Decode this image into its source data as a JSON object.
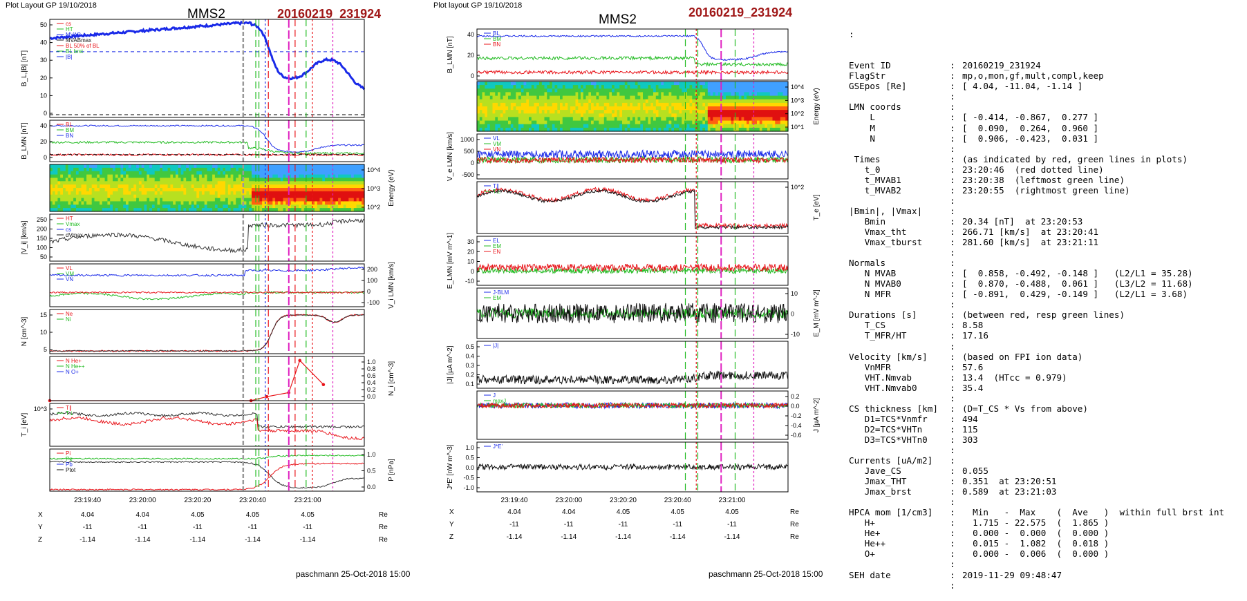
{
  "left_figure": {
    "header": "Plot Layout GP 19/10/2018",
    "spacecraft": "MMS2",
    "event": "20160219_231924",
    "footer": "paschmann 25-Oct-2018 15:00",
    "panels": [
      {
        "ylabel": "B_L,|B| [nT]",
        "legend": [
          "cs",
          "HT",
          "MVAB",
          "MVABmax",
          "BL 50% of BL",
          "BL brst",
          "|B|"
        ],
        "yticks": [
          "50",
          "40",
          "30",
          "20",
          "10",
          "0"
        ],
        "side": "left"
      },
      {
        "ylabel": "B_LMN [nT]",
        "legend": [
          "BL",
          "BM",
          "BN"
        ],
        "yticks": [
          "40",
          "20",
          "0"
        ],
        "side": "left"
      },
      {
        "ylabel": "Energy (eV)",
        "legend": [],
        "yticks": [
          "10^4",
          "10^3",
          "10^2"
        ],
        "side": "right"
      },
      {
        "ylabel": "|V_i| [km/s]",
        "legend": [
          "HT",
          "Vmax",
          "cs",
          "dVmax"
        ],
        "yticks": [
          "250",
          "200",
          "150",
          "100",
          "50"
        ],
        "side": "left"
      },
      {
        "ylabel": "V_i LMN [km/s]",
        "legend": [
          "VL",
          "VM",
          "VN"
        ],
        "yticks": [
          "200",
          "100",
          "0",
          "-100"
        ],
        "side": "right"
      },
      {
        "ylabel": "N [cm^-3]",
        "legend": [
          "Ne",
          "Ni"
        ],
        "yticks": [
          "15",
          "10",
          "5"
        ],
        "side": "left"
      },
      {
        "ylabel": "N_i [cm^-3]",
        "legend": [
          "N He+",
          "N He++",
          "N O+"
        ],
        "yticks": [
          "1.0",
          "0.8",
          "0.6",
          "0.4",
          "0.2",
          "0.0"
        ],
        "side": "right"
      },
      {
        "ylabel": "T_i [eV]",
        "legend": [
          "T∥",
          "T⊥"
        ],
        "yticks": [
          "10^3"
        ],
        "side": "left"
      },
      {
        "ylabel": "P [nPa]",
        "legend": [
          "Pi",
          "Pe",
          "Pb",
          "Ptot"
        ],
        "yticks": [
          "1.0",
          "0.5",
          "0.0"
        ],
        "side": "right"
      }
    ],
    "xticks": [
      "23:19:40",
      "23:20:00",
      "23:20:20",
      "23:20:40",
      "23:21:00"
    ],
    "pos_rows": [
      {
        "label": "X",
        "values": [
          "4.04",
          "4.04",
          "4.05",
          "4.05",
          "4.05"
        ],
        "unit": "Re"
      },
      {
        "label": "Y",
        "values": [
          "-11",
          "-11",
          "-11",
          "-11",
          "-11"
        ],
        "unit": "Re"
      },
      {
        "label": "Z",
        "values": [
          "-1.14",
          "-1.14",
          "-1.14",
          "-1.14",
          "-1.14"
        ],
        "unit": "Re"
      }
    ]
  },
  "right_figure": {
    "header": "Plot layout GP 19/10/2018",
    "spacecraft": "MMS2",
    "event": "20160219_231924",
    "footer": "paschmann 25-Oct-2018 15:00",
    "panels": [
      {
        "ylabel": "B_LMN [nT]",
        "legend": [
          "BL",
          "BM",
          "BN"
        ],
        "yticks": [
          "40",
          "20",
          "0"
        ],
        "side": "left"
      },
      {
        "ylabel": "Energy (eV)",
        "legend": [],
        "yticks": [
          "10^4",
          "10^3",
          "10^2",
          "10^1"
        ],
        "side": "right"
      },
      {
        "ylabel": "V_e LMN [km/s]",
        "legend": [
          "VL",
          "VM",
          "VN"
        ],
        "yticks": [
          "1000",
          "500",
          "0",
          "-500"
        ],
        "side": "left"
      },
      {
        "ylabel": "T_e [eV]",
        "legend": [
          "T∥",
          "T⊥"
        ],
        "yticks": [
          "10^2"
        ],
        "side": "right"
      },
      {
        "ylabel": "E_LMN [mV m^-1]",
        "legend": [
          "EL",
          "EM",
          "EN"
        ],
        "yticks": [
          "30",
          "20",
          "10",
          "0",
          "-10"
        ],
        "side": "left"
      },
      {
        "ylabel": "E_M [mV m^-2]",
        "legend": [
          "J·BLM",
          "EM"
        ],
        "yticks": [
          "10",
          "0",
          "-10"
        ],
        "side": "right"
      },
      {
        "ylabel": "|J| [µA m^-2]",
        "legend": [
          "|J|"
        ],
        "yticks": [
          "0.5",
          "0.4",
          "0.3",
          "0.2",
          "0.1"
        ],
        "side": "left"
      },
      {
        "ylabel": "J [µA m^-2]",
        "legend": [
          "J",
          "maxJ",
          "J"
        ],
        "yticks": [
          "0.2",
          "0.0",
          "-0.2",
          "-0.4",
          "-0.6"
        ],
        "side": "right"
      },
      {
        "ylabel": "J*E' [nW m^-3]",
        "legend": [
          "J*E'"
        ],
        "yticks": [
          "1.0",
          "0.5",
          "0.0",
          "-0.5",
          "-1.0"
        ],
        "side": "left"
      }
    ],
    "xticks": [
      "23:19:40",
      "23:20:00",
      "23:20:20",
      "23:20:40",
      "23:21:00"
    ],
    "pos_rows": [
      {
        "label": "X",
        "values": [
          "4.04",
          "4.04",
          "4.05",
          "4.05",
          "4.05"
        ],
        "unit": "Re"
      },
      {
        "label": "Y",
        "values": [
          "-11",
          "-11",
          "-11",
          "-11",
          "-11"
        ],
        "unit": "Re"
      },
      {
        "label": "Z",
        "values": [
          "-1.14",
          "-1.14",
          "-1.14",
          "-1.14",
          "-1.14"
        ],
        "unit": "Re"
      }
    ]
  },
  "chart_data": [
    {
      "type": "line",
      "title": "MMS2 20160219_231924",
      "xlabel": "time",
      "ylabel": "B_L,|B| [nT]",
      "ylim": [
        0,
        52
      ],
      "x": [
        "23:19:30",
        "23:19:40",
        "23:20:00",
        "23:20:20",
        "23:20:40",
        "23:20:45",
        "23:20:50",
        "23:20:55",
        "23:21:00",
        "23:21:05",
        "23:21:10"
      ],
      "series": [
        {
          "name": "|B|",
          "values": [
            41,
            44,
            47,
            49,
            50,
            42,
            22,
            20,
            27,
            34,
            17
          ]
        }
      ]
    },
    {
      "type": "line",
      "xlabel": "time",
      "ylabel": "N [cm^-3]",
      "ylim": [
        0,
        16
      ],
      "x": [
        "23:19:30",
        "23:19:40",
        "23:20:00",
        "23:20:20",
        "23:20:40",
        "23:20:45",
        "23:20:50",
        "23:20:55",
        "23:21:00",
        "23:21:05",
        "23:21:10"
      ],
      "series": [
        {
          "name": "Ne",
          "values": [
            1.1,
            1.0,
            1.0,
            1.0,
            1.0,
            2.5,
            12,
            14.5,
            14,
            11,
            14
          ]
        },
        {
          "name": "Ni",
          "values": [
            1.1,
            1.0,
            1.0,
            1.0,
            1.0,
            2.5,
            12,
            14.5,
            14,
            11,
            14
          ]
        }
      ]
    },
    {
      "type": "line",
      "xlabel": "time",
      "ylabel": "N_i [cm^-3]",
      "ylim": [
        0,
        1.1
      ],
      "x": [
        "23:19:30",
        "23:20:20",
        "23:20:40",
        "23:20:52",
        "23:21:04"
      ],
      "series": [
        {
          "name": "N He++",
          "values": [
            0,
            0,
            0.1,
            1.0,
            0.4
          ]
        }
      ]
    },
    {
      "type": "line",
      "xlabel": "time",
      "ylabel": "|J| [µA m^-2]",
      "ylim": [
        0,
        0.55
      ],
      "x": [
        "23:19:30",
        "23:20:00",
        "23:20:40",
        "23:20:51",
        "23:21:03"
      ],
      "series": [
        {
          "name": "|J|",
          "values": [
            0.1,
            0.08,
            0.1,
            0.35,
            0.59
          ]
        }
      ]
    }
  ],
  "info": {
    "lead": ":",
    "rows": [
      [
        "Event ID",
        ":",
        "20160219_231924"
      ],
      [
        "FlagStr",
        ":",
        "mp,o,mon,gf,mult,compl,keep"
      ],
      [
        "GSEpos [Re]",
        ":",
        "[ 4.04, -11.04, -1.14 ]"
      ],
      [
        "",
        ":",
        ""
      ],
      [
        "LMN coords",
        ":",
        ""
      ],
      [
        "    L",
        ":",
        "[ -0.414, -0.867,  0.277 ]"
      ],
      [
        "    M",
        ":",
        "[  0.090,  0.264,  0.960 ]"
      ],
      [
        "    N",
        ":",
        "[  0.906, -0.423,  0.031 ]"
      ],
      [
        "",
        ":",
        ""
      ],
      [
        " Times",
        ":",
        "(as indicated by red, green lines in plots)"
      ],
      [
        "   t_0",
        ":",
        "23:20:46  (red dotted line)"
      ],
      [
        "   t_MVAB1",
        ":",
        "23:20:38  (leftmost green line)"
      ],
      [
        "   t_MVAB2",
        ":",
        "23:20:55  (rightmost green line)"
      ],
      [
        "",
        ":",
        ""
      ],
      [
        "|Bmin|, |Vmax|",
        ":",
        ""
      ],
      [
        "   Bmin",
        ":",
        "20.34 [nT]  at 23:20:53"
      ],
      [
        "   Vmax_tht",
        ":",
        "266.71 [km/s]  at 23:20:41"
      ],
      [
        "   Vmax_tburst",
        ":",
        "281.60 [km/s]  at 23:21:11"
      ],
      [
        "",
        ":",
        ""
      ],
      [
        "Normals",
        ":",
        ""
      ],
      [
        "   N MVAB",
        ":",
        "[  0.858, -0.492, -0.148 ]   (L2/L1 = 35.28)"
      ],
      [
        "   N MVAB0",
        ":",
        "[  0.870, -0.488,  0.061 ]   (L3/L2 = 11.68)"
      ],
      [
        "   N MFR",
        ":",
        "[ -0.891,  0.429, -0.149 ]   (L2/L1 = 3.68)"
      ],
      [
        "",
        ":",
        ""
      ],
      [
        "Durations [s]",
        ":",
        "(between red, resp green lines)"
      ],
      [
        "   T_CS",
        ":",
        "8.58"
      ],
      [
        "   T_MFR/HT",
        ":",
        "17.16"
      ],
      [
        "",
        ":",
        ""
      ],
      [
        "Velocity [km/s]",
        ":",
        "(based on FPI ion data)"
      ],
      [
        "   VnMFR",
        ":",
        "57.6"
      ],
      [
        "   VHT.Nmvab",
        ":",
        "13.4  (HTcc = 0.979)"
      ],
      [
        "   VHT.Nmvab0",
        ":",
        "35.4"
      ],
      [
        "",
        ":",
        ""
      ],
      [
        "CS thickness [km]",
        ":",
        "(D=T_CS * Vs from above)"
      ],
      [
        "   D1=TCS*Vnmfr",
        ":",
        "494"
      ],
      [
        "   D2=TCS*VHTn",
        ":",
        "115"
      ],
      [
        "   D3=TCS*VHTn0",
        ":",
        "303"
      ],
      [
        "",
        ":",
        ""
      ],
      [
        "Currents [uA/m2]",
        ":",
        ""
      ],
      [
        "   Jave_CS",
        ":",
        "0.055"
      ],
      [
        "   Jmax_THT",
        ":",
        "0.351  at 23:20:51"
      ],
      [
        "   Jmax_brst",
        ":",
        "0.589  at 23:21:03"
      ],
      [
        "",
        ":",
        ""
      ],
      [
        "HPCA mom [1/cm3]",
        ":",
        "  Min   -  Max    (  Ave   )  within full brst int"
      ],
      [
        "   H+",
        ":",
        "  1.715 - 22.575  (  1.865 )"
      ],
      [
        "   He+",
        ":",
        "  0.000 -  0.000  (  0.000 )"
      ],
      [
        "   He++",
        ":",
        "  0.015 -  1.082  (  0.018 )"
      ],
      [
        "   O+",
        ":",
        "  0.000 -  0.006  (  0.000 )"
      ],
      [
        "",
        ":",
        ""
      ],
      [
        "SEH date",
        ":",
        "2019-11-29 09:48:47"
      ],
      [
        "",
        ":",
        ""
      ]
    ]
  },
  "colors": {
    "red": "#e8141a",
    "green": "#22bb22",
    "blue": "#1a2ae8",
    "black": "#111111",
    "title_red": "#a01818",
    "magenta": "#e020c0"
  }
}
